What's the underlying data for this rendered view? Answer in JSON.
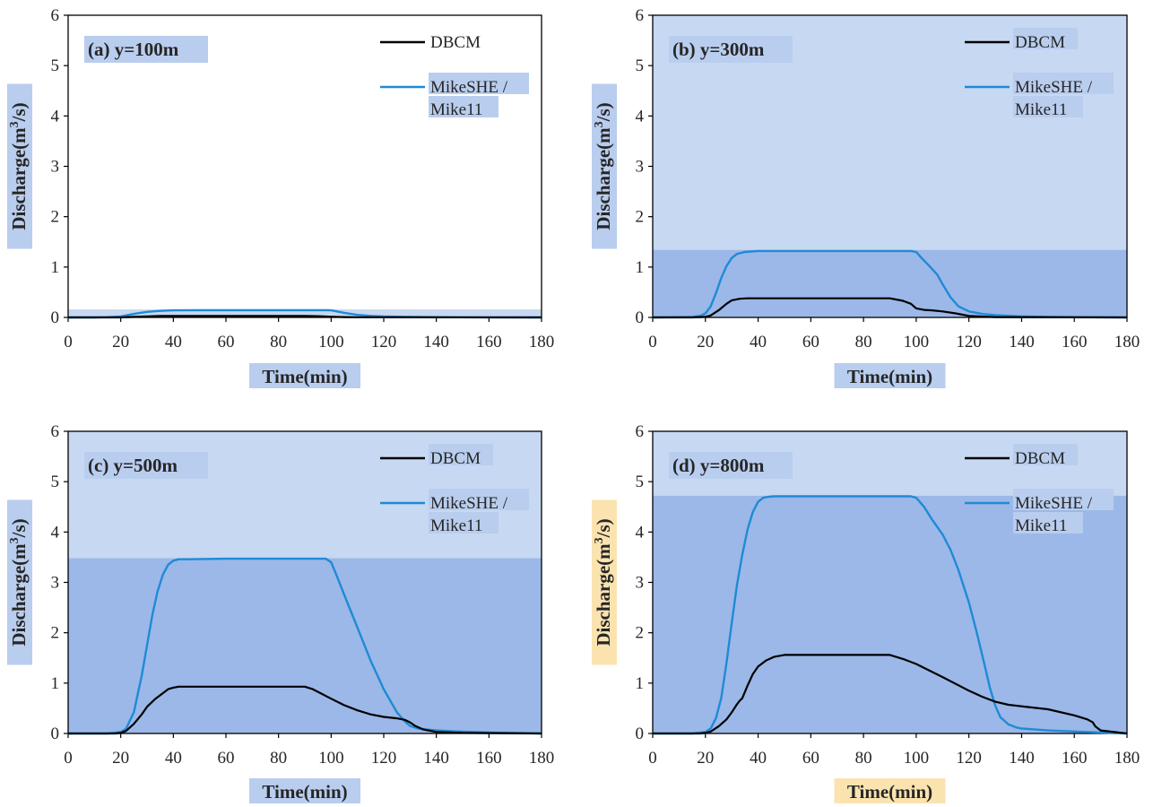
{
  "colors": {
    "dbcm": "#000000",
    "mike": "#1f8ad6",
    "fill_light": "#c7d8f2",
    "fill_dark": "#9bb8e8",
    "label_bg": "#b9cdee",
    "xtitle_bg_d": "#fbe3b0"
  },
  "chart_data": [
    {
      "type": "line",
      "panel_label": "(a) y=100m",
      "xlabel": "Time(min)",
      "ylabel_main": "Discharge(m",
      "ylabel_sup": "3",
      "ylabel_tail": "/s)",
      "xlim": [
        0,
        180
      ],
      "ylim": [
        0,
        6
      ],
      "xticks": [
        "0",
        "20",
        "40",
        "60",
        "80",
        "100",
        "120",
        "140",
        "160",
        "180"
      ],
      "yticks": [
        "0",
        "1",
        "2",
        "3",
        "4",
        "5",
        "6"
      ],
      "legend": [
        "DBCM",
        "MikeSHE /",
        "Mike11"
      ],
      "series": [
        {
          "name": "DBCM",
          "x": [
            0,
            20,
            25,
            30,
            35,
            40,
            60,
            80,
            90,
            95,
            100,
            105,
            110,
            130,
            180
          ],
          "y": [
            0,
            0,
            0.01,
            0.02,
            0.03,
            0.03,
            0.03,
            0.03,
            0.03,
            0.025,
            0.015,
            0.008,
            0.004,
            0.001,
            0
          ]
        },
        {
          "name": "MikeSHE / Mike11",
          "x": [
            0,
            10,
            15,
            20,
            25,
            30,
            35,
            40,
            50,
            60,
            80,
            98,
            100,
            105,
            110,
            115,
            120,
            130,
            140,
            160,
            180
          ],
          "y": [
            0,
            0,
            0.005,
            0.02,
            0.07,
            0.11,
            0.13,
            0.14,
            0.145,
            0.145,
            0.145,
            0.145,
            0.14,
            0.09,
            0.05,
            0.03,
            0.02,
            0.01,
            0.005,
            0.002,
            0
          ]
        }
      ]
    },
    {
      "type": "line",
      "panel_label": "(b) y=300m",
      "xlabel": "Time(min)",
      "ylabel_main": "Discharge(m",
      "ylabel_sup": "3",
      "ylabel_tail": "/s)",
      "xlim": [
        0,
        180
      ],
      "ylim": [
        0,
        6
      ],
      "xticks": [
        "0",
        "20",
        "40",
        "60",
        "80",
        "100",
        "120",
        "140",
        "160",
        "180"
      ],
      "yticks": [
        "0",
        "1",
        "2",
        "3",
        "4",
        "5",
        "6"
      ],
      "legend": [
        "DBCM",
        "MikeSHE /",
        "Mike11"
      ],
      "series": [
        {
          "name": "DBCM",
          "x": [
            0,
            15,
            20,
            22,
            25,
            28,
            30,
            33,
            36,
            40,
            60,
            80,
            90,
            95,
            98,
            100,
            103,
            106,
            110,
            115,
            120,
            130,
            180
          ],
          "y": [
            0,
            0,
            0.01,
            0.04,
            0.14,
            0.27,
            0.34,
            0.37,
            0.38,
            0.38,
            0.38,
            0.38,
            0.38,
            0.33,
            0.27,
            0.18,
            0.15,
            0.14,
            0.12,
            0.08,
            0.03,
            0.005,
            0
          ]
        },
        {
          "name": "MikeSHE / Mike11",
          "x": [
            0,
            15,
            18,
            20,
            22,
            24,
            26,
            28,
            30,
            32,
            35,
            40,
            60,
            80,
            98,
            100,
            102,
            105,
            108,
            110,
            113,
            116,
            120,
            125,
            130,
            140,
            150,
            160,
            180
          ],
          "y": [
            0,
            0.01,
            0.03,
            0.08,
            0.22,
            0.48,
            0.78,
            1.02,
            1.18,
            1.26,
            1.3,
            1.32,
            1.32,
            1.32,
            1.32,
            1.3,
            1.18,
            1.02,
            0.85,
            0.66,
            0.4,
            0.22,
            0.12,
            0.07,
            0.045,
            0.02,
            0.01,
            0.005,
            0
          ]
        }
      ]
    },
    {
      "type": "line",
      "panel_label": "(c) y=500m",
      "xlabel": "Time(min)",
      "ylabel_main": "Discharge(m",
      "ylabel_sup": "3",
      "ylabel_tail": "/s)",
      "xlim": [
        0,
        180
      ],
      "ylim": [
        0,
        6
      ],
      "xticks": [
        "0",
        "20",
        "40",
        "60",
        "80",
        "100",
        "120",
        "140",
        "160",
        "180"
      ],
      "yticks": [
        "0",
        "1",
        "2",
        "3",
        "4",
        "5",
        "6"
      ],
      "legend": [
        "DBCM",
        "MikeSHE /",
        "Mike11"
      ],
      "series": [
        {
          "name": "DBCM",
          "x": [
            0,
            18,
            20,
            22,
            25,
            28,
            30,
            33,
            36,
            38,
            40,
            42,
            45,
            60,
            80,
            90,
            93,
            96,
            100,
            105,
            110,
            115,
            120,
            125,
            128,
            130,
            132,
            135,
            140,
            150,
            180
          ],
          "y": [
            0,
            0,
            0.01,
            0.05,
            0.19,
            0.38,
            0.53,
            0.68,
            0.8,
            0.88,
            0.91,
            0.93,
            0.93,
            0.93,
            0.93,
            0.93,
            0.88,
            0.8,
            0.69,
            0.56,
            0.46,
            0.38,
            0.33,
            0.3,
            0.27,
            0.22,
            0.15,
            0.08,
            0.03,
            0.01,
            0
          ]
        },
        {
          "name": "MikeSHE / Mike11",
          "x": [
            0,
            15,
            20,
            22,
            25,
            28,
            30,
            32,
            34,
            36,
            38,
            40,
            42,
            45,
            60,
            80,
            98,
            100,
            102,
            105,
            110,
            115,
            120,
            125,
            128,
            130,
            133,
            136,
            140,
            150,
            160,
            180
          ],
          "y": [
            0,
            0,
            0.03,
            0.09,
            0.42,
            1.15,
            1.75,
            2.35,
            2.82,
            3.15,
            3.35,
            3.43,
            3.46,
            3.46,
            3.47,
            3.47,
            3.47,
            3.4,
            3.15,
            2.75,
            2.1,
            1.45,
            0.88,
            0.42,
            0.24,
            0.15,
            0.1,
            0.08,
            0.06,
            0.035,
            0.02,
            0
          ]
        }
      ]
    },
    {
      "type": "line",
      "panel_label": "(d) y=800m",
      "xlabel": "Time(min)",
      "ylabel_main": "Discharge(m",
      "ylabel_sup": "3",
      "ylabel_tail": "/s)",
      "xlim": [
        0,
        180
      ],
      "ylim": [
        0,
        6
      ],
      "xticks": [
        "0",
        "20",
        "40",
        "60",
        "80",
        "100",
        "120",
        "140",
        "160",
        "180"
      ],
      "yticks": [
        "0",
        "1",
        "2",
        "3",
        "4",
        "5",
        "6"
      ],
      "legend": [
        "DBCM",
        "MikeSHE /",
        "Mike11"
      ],
      "series": [
        {
          "name": "DBCM",
          "x": [
            0,
            18,
            20,
            22,
            25,
            28,
            30,
            32,
            33,
            34,
            36,
            38,
            40,
            43,
            46,
            50,
            60,
            80,
            90,
            95,
            100,
            110,
            120,
            125,
            130,
            135,
            140,
            150,
            160,
            165,
            167,
            168,
            170,
            180
          ],
          "y": [
            0,
            0,
            0.01,
            0.04,
            0.14,
            0.28,
            0.42,
            0.58,
            0.65,
            0.7,
            0.95,
            1.18,
            1.33,
            1.45,
            1.52,
            1.56,
            1.56,
            1.56,
            1.56,
            1.48,
            1.38,
            1.12,
            0.85,
            0.73,
            0.63,
            0.57,
            0.54,
            0.48,
            0.36,
            0.28,
            0.22,
            0.14,
            0.06,
            0
          ]
        },
        {
          "name": "MikeSHE / Mike11",
          "x": [
            0,
            15,
            20,
            22,
            24,
            26,
            28,
            30,
            32,
            34,
            36,
            38,
            40,
            42,
            44,
            46,
            50,
            60,
            80,
            98,
            100,
            103,
            106,
            110,
            113,
            116,
            120,
            123,
            126,
            128,
            130,
            132,
            135,
            138,
            140,
            150,
            160,
            170,
            180
          ],
          "y": [
            0,
            0,
            0.03,
            0.1,
            0.3,
            0.7,
            1.4,
            2.2,
            2.95,
            3.55,
            4.05,
            4.4,
            4.6,
            4.68,
            4.7,
            4.71,
            4.71,
            4.71,
            4.71,
            4.71,
            4.68,
            4.5,
            4.25,
            3.95,
            3.65,
            3.25,
            2.6,
            2.0,
            1.35,
            0.9,
            0.55,
            0.32,
            0.18,
            0.12,
            0.1,
            0.06,
            0.04,
            0.02,
            0
          ]
        }
      ]
    }
  ]
}
